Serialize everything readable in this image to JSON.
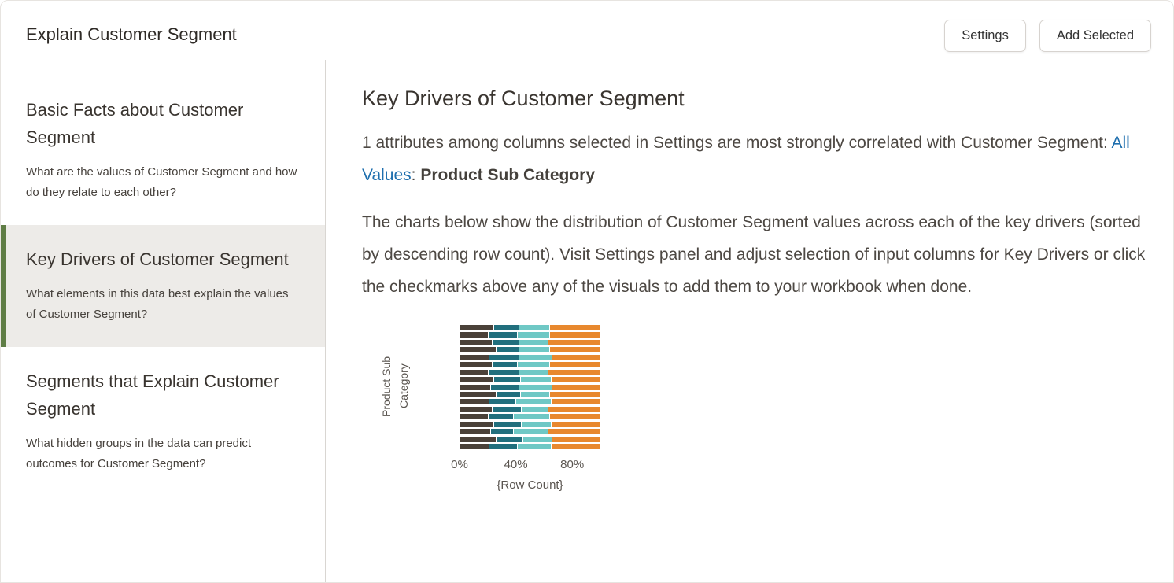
{
  "header": {
    "title": "Explain Customer Segment",
    "settings_button": "Settings",
    "add_selected_button": "Add Selected"
  },
  "sidebar": {
    "items": [
      {
        "title": "Basic Facts about Customer Segment",
        "description": "What are the values of Customer Segment and how do they relate to each other?",
        "selected": false
      },
      {
        "title": "Key Drivers of Customer Segment",
        "description": "What elements in this data best explain the values of Customer Segment?",
        "selected": true
      },
      {
        "title": "Segments that Explain Customer Segment",
        "description": "What hidden groups in the data can predict outcomes for Customer Segment?",
        "selected": false
      }
    ]
  },
  "main": {
    "heading": "Key Drivers of Customer Segment",
    "paragraph1": {
      "intro": "1 attributes among columns selected in Settings are most strongly correlated with Customer Segment: ",
      "link_label": "All Values",
      "colon": ": ",
      "driver": "Product Sub Category"
    },
    "paragraph2": "The charts below show the distribution of Customer Segment values across each of the key drivers (sorted by descending row count). Visit Settings panel and adjust selection of input columns for Key Drivers or click the checkmarks above any of the visuals to add them to your workbook when done."
  },
  "chart_data": {
    "type": "bar",
    "orientation": "horizontal",
    "stacked": true,
    "title": "",
    "ylabel": "Product Sub Category",
    "xlabel": "{Row Count}",
    "x_ticks": [
      {
        "label": "0%",
        "pos": 0
      },
      {
        "label": "40%",
        "pos": 40
      },
      {
        "label": "80%",
        "pos": 80
      }
    ],
    "xlim": [
      0,
      100
    ],
    "legend": "none",
    "segment_colors": [
      "#4a4139",
      "#216f7d",
      "#6fc8c5",
      "#e8882e"
    ],
    "bars": [
      [
        24,
        18,
        22,
        36
      ],
      [
        20,
        21,
        23,
        36
      ],
      [
        23,
        19,
        21,
        37
      ],
      [
        26,
        16,
        22,
        36
      ],
      [
        21,
        21,
        24,
        34
      ],
      [
        23,
        18,
        23,
        36
      ],
      [
        20,
        22,
        21,
        37
      ],
      [
        24,
        19,
        22,
        35
      ],
      [
        22,
        20,
        24,
        34
      ],
      [
        26,
        17,
        21,
        36
      ],
      [
        21,
        19,
        25,
        35
      ],
      [
        23,
        21,
        19,
        37
      ],
      [
        20,
        18,
        26,
        36
      ],
      [
        24,
        20,
        21,
        35
      ],
      [
        22,
        16,
        25,
        37
      ],
      [
        26,
        19,
        21,
        34
      ],
      [
        21,
        20,
        24,
        35
      ]
    ]
  },
  "colors": {
    "selected_accent_green": "#5f7d45",
    "selected_background": "#edebe8",
    "link_blue": "#1f6fae",
    "divider": "#d9d6d2"
  }
}
